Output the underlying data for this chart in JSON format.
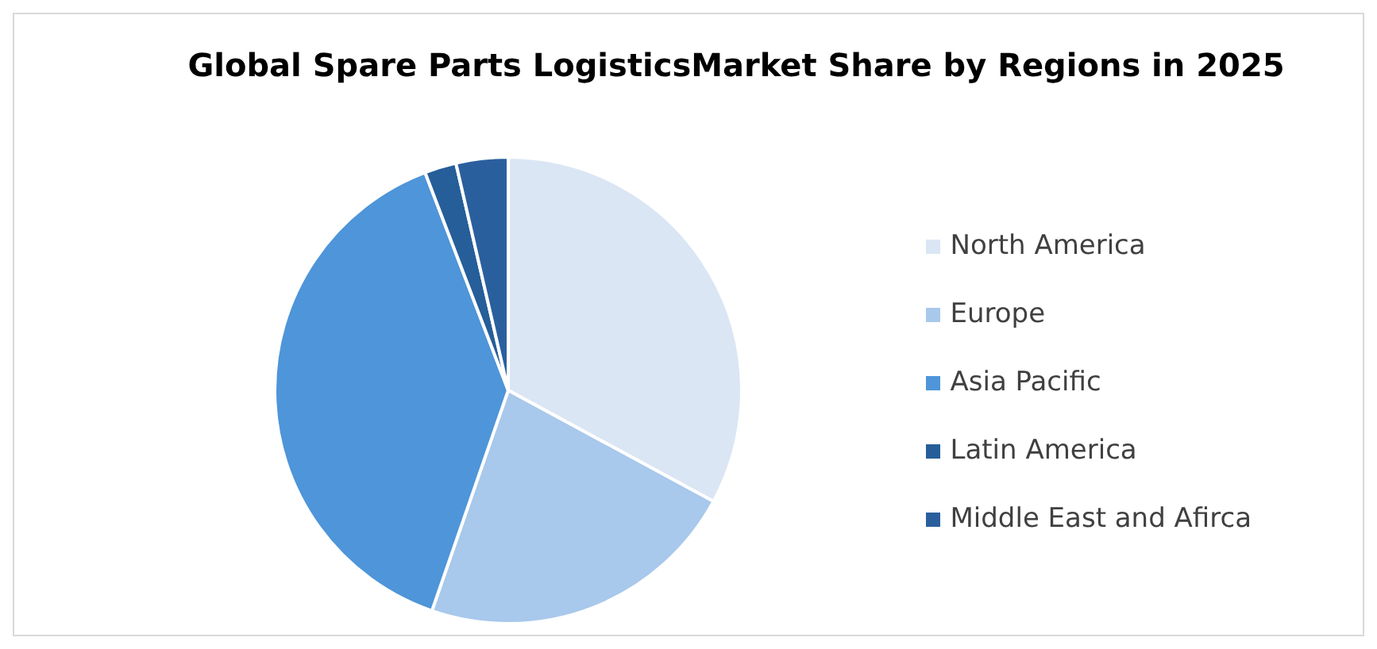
{
  "chart_data": {
    "type": "pie",
    "title": "Global Spare Parts LogisticsMarket Share by Regions in 2025",
    "categories": [
      "North America",
      "Europe",
      "Asia Pacific",
      "Latin America",
      "Middle East and Afirca"
    ],
    "values": [
      32.9,
      22.4,
      38.9,
      2.2,
      3.6
    ],
    "colors": [
      "#dae6f4",
      "#a8c8ec",
      "#4e95d9",
      "#255e99",
      "#2a5f9e"
    ],
    "legend": "right"
  }
}
